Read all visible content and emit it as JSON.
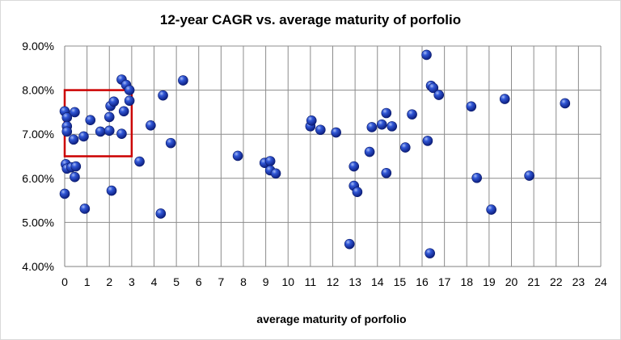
{
  "chart_data": {
    "type": "scatter",
    "title": "12-year CAGR vs. average maturity of porfolio",
    "xlabel": "average maturity of porfolio",
    "ylabel": "",
    "xlim": [
      0,
      24
    ],
    "ylim": [
      0.04,
      0.09
    ],
    "x_ticks": [
      0,
      1,
      2,
      3,
      4,
      5,
      6,
      7,
      8,
      9,
      10,
      11,
      12,
      13,
      14,
      15,
      16,
      17,
      18,
      19,
      20,
      21,
      22,
      23,
      24
    ],
    "x_tick_labels": [
      "0",
      "1",
      "2",
      "3",
      "4",
      "5",
      "6",
      "7",
      "8",
      "9",
      "10",
      "11",
      "12",
      "13",
      "14",
      "15",
      "16",
      "17",
      "18",
      "19",
      "20",
      "21",
      "22",
      "23",
      "24"
    ],
    "y_ticks": [
      0.04,
      0.05,
      0.06,
      0.07,
      0.08,
      0.09
    ],
    "y_tick_labels": [
      "4.00%",
      "5.00%",
      "6.00%",
      "7.00%",
      "8.00%",
      "9.00%"
    ],
    "grid": true,
    "legend": "none",
    "marker_color": "#1f3fbf",
    "highlight_box": {
      "x_range": [
        0,
        3
      ],
      "y_range": [
        0.065,
        0.08
      ],
      "color": "#cc0000"
    },
    "series": [
      {
        "points": [
          [
            0.0,
            0.0752
          ],
          [
            0.1,
            0.0738
          ],
          [
            0.1,
            0.0718
          ],
          [
            0.1,
            0.0706
          ],
          [
            0.05,
            0.0632
          ],
          [
            0.1,
            0.0622
          ],
          [
            0.3,
            0.0625
          ],
          [
            0.0,
            0.0565
          ],
          [
            0.45,
            0.075
          ],
          [
            0.4,
            0.0688
          ],
          [
            0.5,
            0.0627
          ],
          [
            0.45,
            0.0603
          ],
          [
            0.85,
            0.0695
          ],
          [
            0.9,
            0.0531
          ],
          [
            1.15,
            0.0732
          ],
          [
            1.6,
            0.0706
          ],
          [
            2.0,
            0.0739
          ],
          [
            2.05,
            0.0764
          ],
          [
            2.0,
            0.0708
          ],
          [
            2.2,
            0.0774
          ],
          [
            2.55,
            0.0824
          ],
          [
            2.55,
            0.0701
          ],
          [
            2.65,
            0.0752
          ],
          [
            2.75,
            0.0812
          ],
          [
            2.9,
            0.08
          ],
          [
            2.9,
            0.0776
          ],
          [
            2.1,
            0.0572
          ],
          [
            3.35,
            0.0638
          ],
          [
            3.85,
            0.072
          ],
          [
            4.3,
            0.052
          ],
          [
            4.4,
            0.0788
          ],
          [
            4.75,
            0.068
          ],
          [
            5.3,
            0.0822
          ],
          [
            7.75,
            0.0651
          ],
          [
            8.95,
            0.0635
          ],
          [
            9.2,
            0.0639
          ],
          [
            9.2,
            0.0618
          ],
          [
            9.45,
            0.0611
          ],
          [
            11.0,
            0.0718
          ],
          [
            11.05,
            0.0731
          ],
          [
            11.45,
            0.071
          ],
          [
            12.15,
            0.0704
          ],
          [
            12.75,
            0.0451
          ],
          [
            12.95,
            0.0627
          ],
          [
            12.95,
            0.0583
          ],
          [
            13.1,
            0.0569
          ],
          [
            13.65,
            0.066
          ],
          [
            13.75,
            0.0716
          ],
          [
            14.2,
            0.0722
          ],
          [
            14.4,
            0.0748
          ],
          [
            14.4,
            0.0612
          ],
          [
            14.65,
            0.0718
          ],
          [
            15.25,
            0.067
          ],
          [
            15.55,
            0.0745
          ],
          [
            16.2,
            0.088
          ],
          [
            16.25,
            0.0685
          ],
          [
            16.35,
            0.043
          ],
          [
            16.4,
            0.081
          ],
          [
            16.5,
            0.0805
          ],
          [
            16.75,
            0.0789
          ],
          [
            18.2,
            0.0763
          ],
          [
            18.45,
            0.0601
          ],
          [
            19.1,
            0.0529
          ],
          [
            19.7,
            0.078
          ],
          [
            20.8,
            0.0606
          ],
          [
            22.4,
            0.077
          ]
        ]
      }
    ]
  }
}
